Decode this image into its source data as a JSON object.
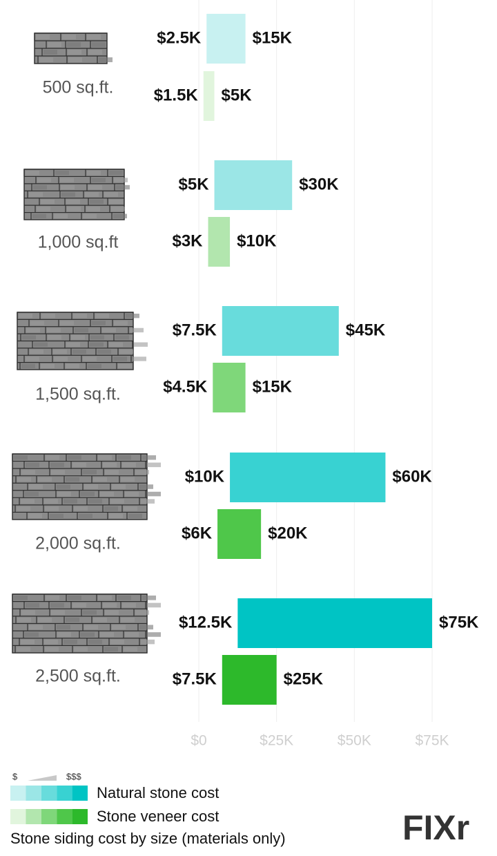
{
  "chart_data": {
    "type": "range_bar",
    "categories": [
      "500 sq.ft.",
      "1,000 sq.ft",
      "1,500 sq.ft.",
      "2,000 sq.ft.",
      "2,500 sq.ft."
    ],
    "series": [
      {
        "name": "Natural stone cost",
        "colors": [
          "#c8f1f1",
          "#9be6e6",
          "#68dcdc",
          "#38d2d2",
          "#00c4c4"
        ],
        "values": [
          [
            2500,
            15000
          ],
          [
            5000,
            30000
          ],
          [
            7500,
            45000
          ],
          [
            10000,
            60000
          ],
          [
            12500,
            75000
          ]
        ],
        "value_labels": [
          [
            "$2.5K",
            "$15K"
          ],
          [
            "$5K",
            "$30K"
          ],
          [
            "$7.5K",
            "$45K"
          ],
          [
            "$10K",
            "$60K"
          ],
          [
            "$12.5K",
            "$75K"
          ]
        ]
      },
      {
        "name": "Stone veneer cost",
        "colors": [
          "#e1f5dd",
          "#b2e6ae",
          "#7fd77a",
          "#4fc74a",
          "#2db92b"
        ],
        "values": [
          [
            1500,
            5000
          ],
          [
            3000,
            10000
          ],
          [
            4500,
            15000
          ],
          [
            6000,
            20000
          ],
          [
            7500,
            25000
          ]
        ],
        "value_labels": [
          [
            "$1.5K",
            "$5K"
          ],
          [
            "$3K",
            "$10K"
          ],
          [
            "$4.5K",
            "$15K"
          ],
          [
            "$6K",
            "$20K"
          ],
          [
            "$7.5K",
            "$25K"
          ]
        ]
      }
    ],
    "xlim": [
      0,
      75000
    ],
    "xticks": [
      {
        "value": 0,
        "label": "$0"
      },
      {
        "value": 25000,
        "label": "$25K"
      },
      {
        "value": 50000,
        "label": "$50K"
      },
      {
        "value": 75000,
        "label": "$75K"
      }
    ],
    "grid": true,
    "legend_scale": [
      "$",
      "$$$"
    ],
    "caption": "Stone siding cost by size (materials only)",
    "logo": "FIXr"
  }
}
